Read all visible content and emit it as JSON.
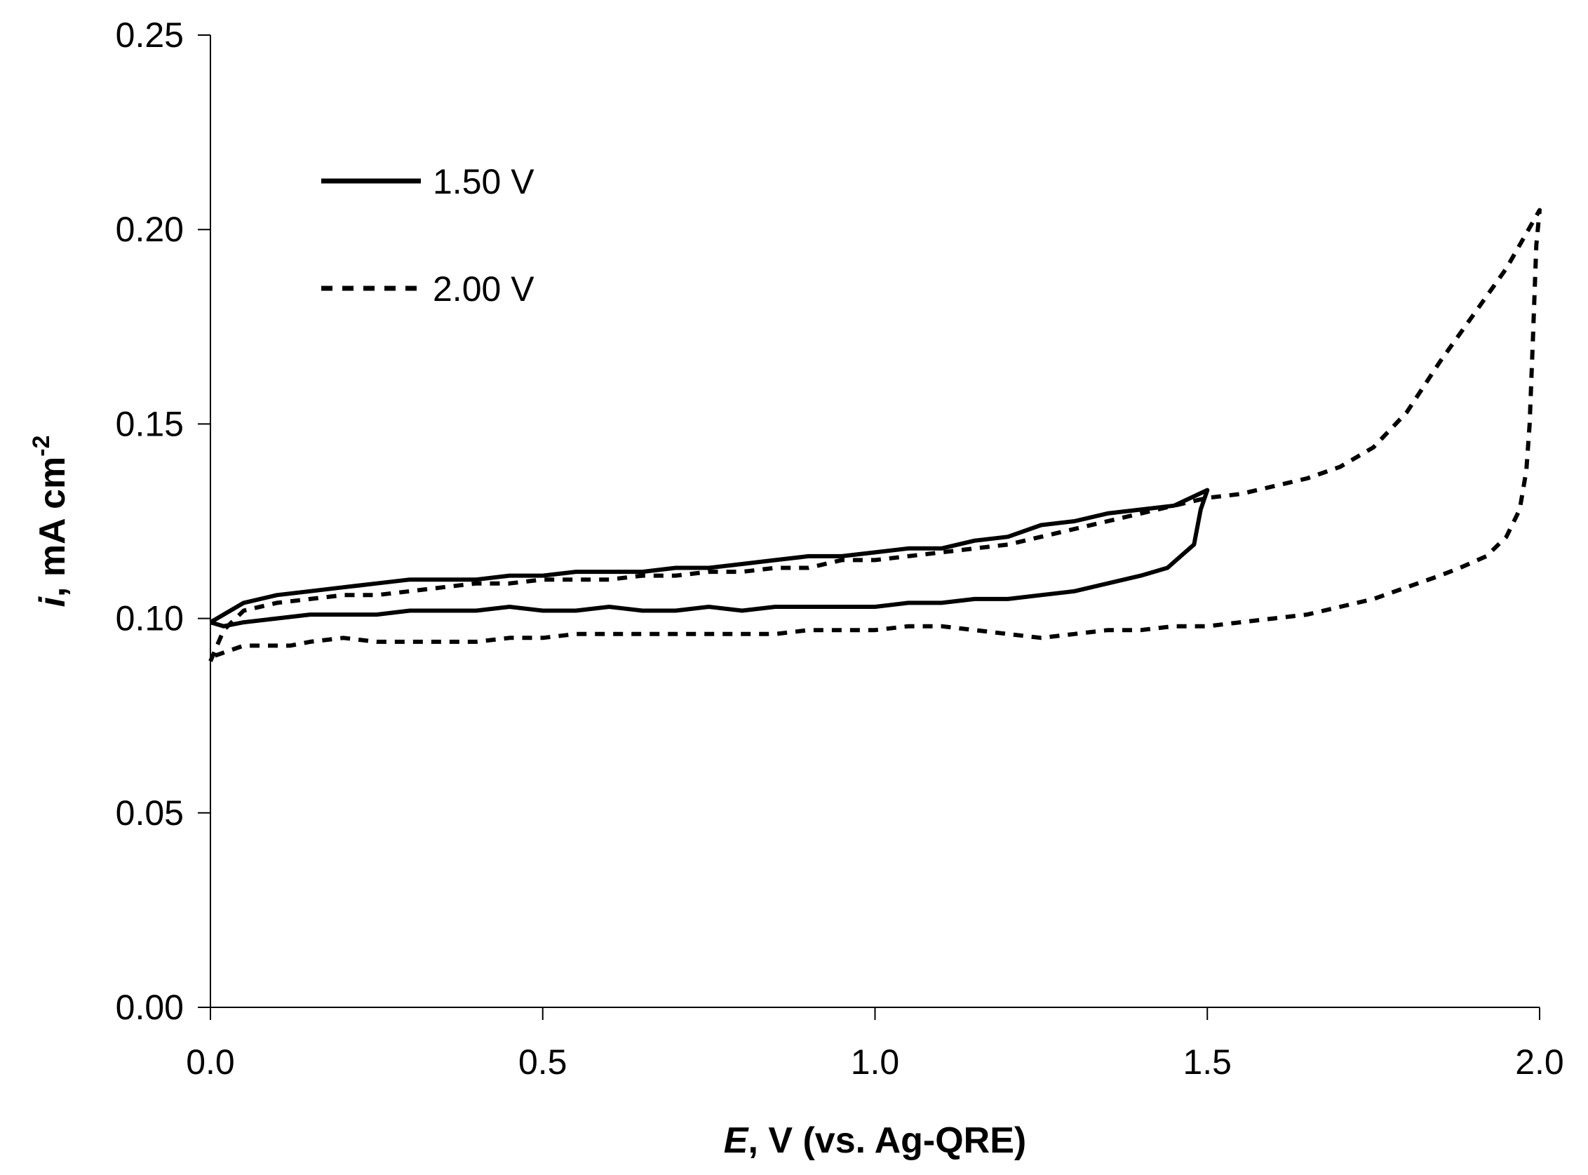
{
  "chart_data": {
    "type": "line",
    "title": "",
    "xlabel": {
      "symbol": "E",
      "rest": ", V (vs. Ag-QRE)"
    },
    "ylabel": {
      "symbol": "i",
      "rest": ", mA cm",
      "superscript": "-2"
    },
    "xlim": [
      0.0,
      2.0
    ],
    "ylim": [
      0.0,
      0.25
    ],
    "xticks": [
      "0.0",
      "0.5",
      "1.0",
      "1.5",
      "2.0"
    ],
    "xtick_values": [
      0.0,
      0.5,
      1.0,
      1.5,
      2.0
    ],
    "yticks": [
      "0.00",
      "0.05",
      "0.10",
      "0.15",
      "0.20",
      "0.25"
    ],
    "ytick_values": [
      0.0,
      0.05,
      0.1,
      0.15,
      0.2,
      0.25
    ],
    "grid": false,
    "legend_position": "top-left",
    "series": [
      {
        "name": "1.50 V",
        "style": "solid",
        "color": "#000000",
        "points": [
          [
            0.0,
            0.099
          ],
          [
            0.05,
            0.104
          ],
          [
            0.1,
            0.106
          ],
          [
            0.15,
            0.107
          ],
          [
            0.2,
            0.108
          ],
          [
            0.25,
            0.109
          ],
          [
            0.3,
            0.11
          ],
          [
            0.35,
            0.11
          ],
          [
            0.4,
            0.11
          ],
          [
            0.45,
            0.111
          ],
          [
            0.5,
            0.111
          ],
          [
            0.55,
            0.112
          ],
          [
            0.6,
            0.112
          ],
          [
            0.65,
            0.112
          ],
          [
            0.7,
            0.113
          ],
          [
            0.75,
            0.113
          ],
          [
            0.8,
            0.114
          ],
          [
            0.85,
            0.115
          ],
          [
            0.9,
            0.116
          ],
          [
            0.95,
            0.116
          ],
          [
            1.0,
            0.117
          ],
          [
            1.05,
            0.118
          ],
          [
            1.1,
            0.118
          ],
          [
            1.15,
            0.12
          ],
          [
            1.2,
            0.121
          ],
          [
            1.25,
            0.124
          ],
          [
            1.3,
            0.125
          ],
          [
            1.35,
            0.127
          ],
          [
            1.4,
            0.128
          ],
          [
            1.45,
            0.129
          ],
          [
            1.5,
            0.133
          ],
          [
            1.49,
            0.128
          ],
          [
            1.48,
            0.119
          ],
          [
            1.46,
            0.116
          ],
          [
            1.44,
            0.113
          ],
          [
            1.4,
            0.111
          ],
          [
            1.35,
            0.109
          ],
          [
            1.3,
            0.107
          ],
          [
            1.25,
            0.106
          ],
          [
            1.2,
            0.105
          ],
          [
            1.15,
            0.105
          ],
          [
            1.1,
            0.104
          ],
          [
            1.05,
            0.104
          ],
          [
            1.0,
            0.103
          ],
          [
            0.95,
            0.103
          ],
          [
            0.9,
            0.103
          ],
          [
            0.85,
            0.103
          ],
          [
            0.8,
            0.102
          ],
          [
            0.75,
            0.103
          ],
          [
            0.7,
            0.102
          ],
          [
            0.65,
            0.102
          ],
          [
            0.6,
            0.103
          ],
          [
            0.55,
            0.102
          ],
          [
            0.5,
            0.102
          ],
          [
            0.45,
            0.103
          ],
          [
            0.4,
            0.102
          ],
          [
            0.35,
            0.102
          ],
          [
            0.3,
            0.102
          ],
          [
            0.25,
            0.101
          ],
          [
            0.2,
            0.101
          ],
          [
            0.15,
            0.101
          ],
          [
            0.1,
            0.1
          ],
          [
            0.05,
            0.099
          ],
          [
            0.02,
            0.098
          ],
          [
            0.0,
            0.099
          ]
        ]
      },
      {
        "name": "2.00 V",
        "style": "dotted",
        "color": "#000000",
        "points": [
          [
            0.0,
            0.089
          ],
          [
            0.02,
            0.097
          ],
          [
            0.05,
            0.102
          ],
          [
            0.1,
            0.104
          ],
          [
            0.15,
            0.105
          ],
          [
            0.2,
            0.106
          ],
          [
            0.25,
            0.106
          ],
          [
            0.3,
            0.107
          ],
          [
            0.35,
            0.108
          ],
          [
            0.4,
            0.109
          ],
          [
            0.45,
            0.109
          ],
          [
            0.5,
            0.11
          ],
          [
            0.55,
            0.11
          ],
          [
            0.6,
            0.11
          ],
          [
            0.65,
            0.111
          ],
          [
            0.7,
            0.111
          ],
          [
            0.75,
            0.112
          ],
          [
            0.8,
            0.112
          ],
          [
            0.85,
            0.113
          ],
          [
            0.9,
            0.113
          ],
          [
            0.95,
            0.115
          ],
          [
            1.0,
            0.115
          ],
          [
            1.05,
            0.116
          ],
          [
            1.1,
            0.117
          ],
          [
            1.15,
            0.118
          ],
          [
            1.2,
            0.119
          ],
          [
            1.25,
            0.121
          ],
          [
            1.3,
            0.123
          ],
          [
            1.35,
            0.125
          ],
          [
            1.4,
            0.127
          ],
          [
            1.45,
            0.129
          ],
          [
            1.5,
            0.131
          ],
          [
            1.55,
            0.132
          ],
          [
            1.6,
            0.134
          ],
          [
            1.65,
            0.136
          ],
          [
            1.7,
            0.139
          ],
          [
            1.75,
            0.144
          ],
          [
            1.8,
            0.153
          ],
          [
            1.85,
            0.166
          ],
          [
            1.9,
            0.178
          ],
          [
            1.95,
            0.19
          ],
          [
            1.98,
            0.199
          ],
          [
            2.0,
            0.205
          ],
          [
            1.995,
            0.196
          ],
          [
            1.99,
            0.172
          ],
          [
            1.985,
            0.15
          ],
          [
            1.98,
            0.138
          ],
          [
            1.97,
            0.128
          ],
          [
            1.95,
            0.121
          ],
          [
            1.92,
            0.116
          ],
          [
            1.88,
            0.113
          ],
          [
            1.85,
            0.111
          ],
          [
            1.8,
            0.108
          ],
          [
            1.75,
            0.105
          ],
          [
            1.7,
            0.103
          ],
          [
            1.65,
            0.101
          ],
          [
            1.6,
            0.1
          ],
          [
            1.55,
            0.099
          ],
          [
            1.5,
            0.098
          ],
          [
            1.45,
            0.098
          ],
          [
            1.4,
            0.097
          ],
          [
            1.35,
            0.097
          ],
          [
            1.3,
            0.096
          ],
          [
            1.25,
            0.095
          ],
          [
            1.2,
            0.096
          ],
          [
            1.15,
            0.097
          ],
          [
            1.1,
            0.098
          ],
          [
            1.05,
            0.098
          ],
          [
            1.0,
            0.097
          ],
          [
            0.95,
            0.097
          ],
          [
            0.9,
            0.097
          ],
          [
            0.85,
            0.096
          ],
          [
            0.8,
            0.096
          ],
          [
            0.75,
            0.096
          ],
          [
            0.7,
            0.096
          ],
          [
            0.65,
            0.096
          ],
          [
            0.6,
            0.096
          ],
          [
            0.55,
            0.096
          ],
          [
            0.5,
            0.095
          ],
          [
            0.45,
            0.095
          ],
          [
            0.4,
            0.094
          ],
          [
            0.35,
            0.094
          ],
          [
            0.3,
            0.094
          ],
          [
            0.25,
            0.094
          ],
          [
            0.2,
            0.095
          ],
          [
            0.15,
            0.094
          ],
          [
            0.12,
            0.093
          ],
          [
            0.1,
            0.093
          ],
          [
            0.05,
            0.093
          ],
          [
            0.0,
            0.09
          ]
        ]
      }
    ]
  }
}
